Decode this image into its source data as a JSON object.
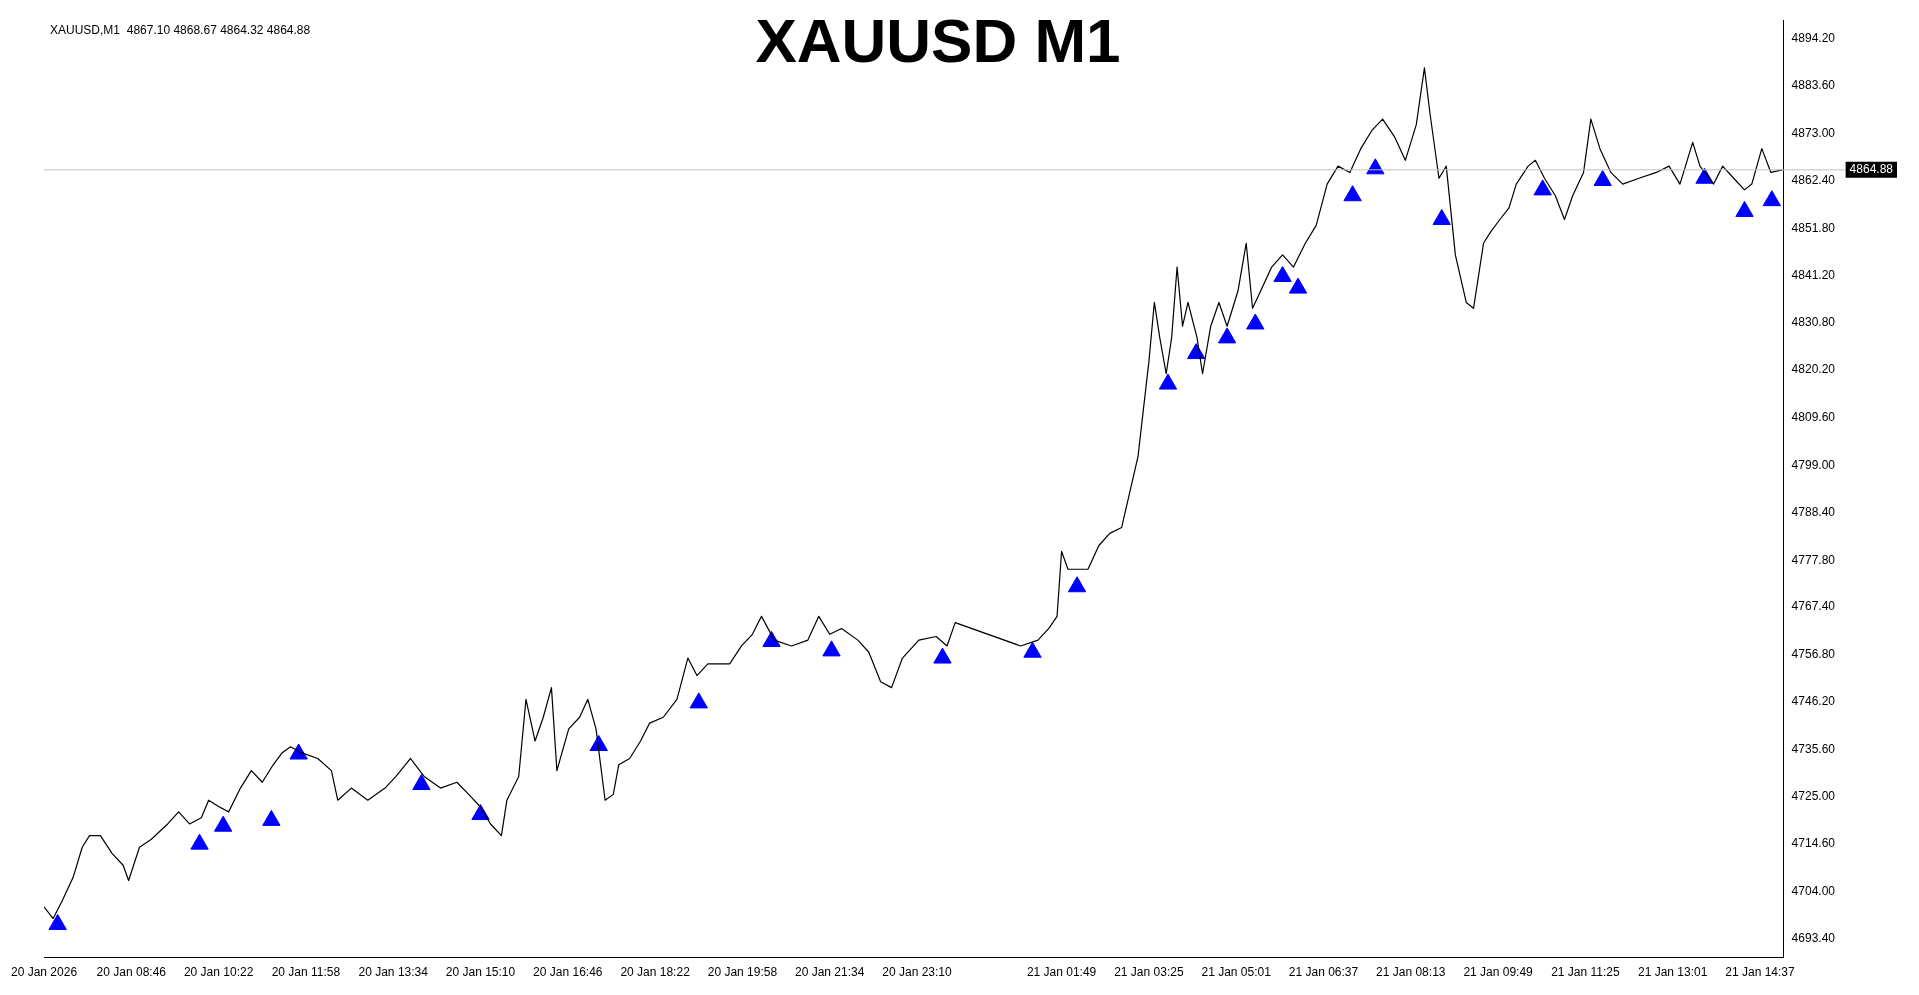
{
  "chart_data": {
    "type": "line",
    "title": "XAUUSD M1",
    "annotations": [
      "XAUUSD,M1  4867.10 4868.67 4864.32 4864.88"
    ],
    "xlim": [
      "2026-01-20T07:10",
      "2026-01-21T15:03"
    ],
    "ylim": [
      4689.2,
      4898.2
    ],
    "xticks": [
      {
        "value": "2026-01-20T07:10",
        "label": "20 Jan 2026"
      },
      {
        "value": "2026-01-20T08:46",
        "label": "20 Jan 08:46"
      },
      {
        "value": "2026-01-20T10:22",
        "label": "20 Jan 10:22"
      },
      {
        "value": "2026-01-20T11:58",
        "label": "20 Jan 11:58"
      },
      {
        "value": "2026-01-20T13:34",
        "label": "20 Jan 13:34"
      },
      {
        "value": "2026-01-20T15:10",
        "label": "20 Jan 15:10"
      },
      {
        "value": "2026-01-20T16:46",
        "label": "20 Jan 16:46"
      },
      {
        "value": "2026-01-20T18:22",
        "label": "20 Jan 18:22"
      },
      {
        "value": "2026-01-20T19:58",
        "label": "20 Jan 19:58"
      },
      {
        "value": "2026-01-20T21:34",
        "label": "20 Jan 21:34"
      },
      {
        "value": "2026-01-20T23:10",
        "label": "20 Jan 23:10"
      },
      {
        "value": "2026-01-21T01:49",
        "label": "21 Jan 01:49"
      },
      {
        "value": "2026-01-21T03:25",
        "label": "21 Jan 03:25"
      },
      {
        "value": "2026-01-21T05:01",
        "label": "21 Jan 05:01"
      },
      {
        "value": "2026-01-21T06:37",
        "label": "21 Jan 06:37"
      },
      {
        "value": "2026-01-21T08:13",
        "label": "21 Jan 08:13"
      },
      {
        "value": "2026-01-21T09:49",
        "label": "21 Jan 09:49"
      },
      {
        "value": "2026-01-21T11:25",
        "label": "21 Jan 11:25"
      },
      {
        "value": "2026-01-21T13:01",
        "label": "21 Jan 13:01"
      },
      {
        "value": "2026-01-21T14:37",
        "label": "21 Jan 14:37"
      }
    ],
    "yticks": [
      {
        "value": 4693.4,
        "label": "4693.40"
      },
      {
        "value": 4704,
        "label": "4704.00"
      },
      {
        "value": 4714.6,
        "label": "4714.60"
      },
      {
        "value": 4725,
        "label": "4725.00"
      },
      {
        "value": 4735.6,
        "label": "4735.60"
      },
      {
        "value": 4746.2,
        "label": "4746.20"
      },
      {
        "value": 4756.8,
        "label": "4756.80"
      },
      {
        "value": 4767.4,
        "label": "4767.40"
      },
      {
        "value": 4777.8,
        "label": "4777.80"
      },
      {
        "value": 4788.4,
        "label": "4788.40"
      },
      {
        "value": 4799,
        "label": "4799.00"
      },
      {
        "value": 4809.6,
        "label": "4809.60"
      },
      {
        "value": 4820.2,
        "label": "4820.20"
      },
      {
        "value": 4830.8,
        "label": "4830.80"
      },
      {
        "value": 4841.2,
        "label": "4841.20"
      },
      {
        "value": 4851.8,
        "label": "4851.80"
      },
      {
        "value": 4862.4,
        "label": "4862.40"
      },
      {
        "value": 4873,
        "label": "4873.00"
      },
      {
        "value": 4883.6,
        "label": "4883.60"
      },
      {
        "value": 4894.2,
        "label": "4894.20"
      }
    ],
    "grid": false,
    "legend": false,
    "ref_lines": [
      {
        "axis": "y",
        "value": 4864.88,
        "label": "4864.88",
        "color": "#c0c0c0"
      }
    ],
    "series": [
      {
        "type": "line",
        "color": "#000000",
        "x": [
          "2026-01-20T07:10",
          "2026-01-20T07:20",
          "2026-01-20T07:30",
          "2026-01-20T07:42",
          "2026-01-20T07:52",
          "2026-01-20T08:00",
          "2026-01-20T08:12",
          "2026-01-20T08:25",
          "2026-01-20T08:37",
          "2026-01-20T08:43",
          "2026-01-20T08:55",
          "2026-01-20T09:08",
          "2026-01-20T09:26",
          "2026-01-20T09:38",
          "2026-01-20T09:50",
          "2026-01-20T10:03",
          "2026-01-20T10:11",
          "2026-01-20T10:21",
          "2026-01-20T10:33",
          "2026-01-20T10:46",
          "2026-01-20T10:58",
          "2026-01-20T11:10",
          "2026-01-20T11:22",
          "2026-01-20T11:32",
          "2026-01-20T11:41",
          "2026-01-20T11:53",
          "2026-01-20T12:11",
          "2026-01-20T12:26",
          "2026-01-20T12:33",
          "2026-01-20T12:48",
          "2026-01-20T13:06",
          "2026-01-20T13:25",
          "2026-01-20T13:37",
          "2026-01-20T13:53",
          "2026-01-20T14:08",
          "2026-01-20T14:26",
          "2026-01-20T14:44",
          "2026-01-20T14:57",
          "2026-01-20T15:09",
          "2026-01-20T15:21",
          "2026-01-20T15:33",
          "2026-01-20T15:39",
          "2026-01-20T15:52",
          "2026-01-20T16:00",
          "2026-01-20T16:10",
          "2026-01-20T16:19",
          "2026-01-20T16:28",
          "2026-01-20T16:34",
          "2026-01-20T16:47",
          "2026-01-20T16:59",
          "2026-01-20T17:08",
          "2026-01-20T17:17",
          "2026-01-20T17:27",
          "2026-01-20T17:36",
          "2026-01-20T17:42",
          "2026-01-20T17:54",
          "2026-01-20T18:06",
          "2026-01-20T18:16",
          "2026-01-20T18:31",
          "2026-01-20T18:46",
          "2026-01-20T18:58",
          "2026-01-20T19:08",
          "2026-01-20T19:20",
          "2026-01-20T19:44",
          "2026-01-20T19:57",
          "2026-01-20T20:09",
          "2026-01-20T20:19",
          "2026-01-20T20:33",
          "2026-01-20T20:52",
          "2026-01-20T21:10",
          "2026-01-20T21:22",
          "2026-01-20T21:34",
          "2026-01-20T21:47",
          "2026-01-20T22:05",
          "2026-01-20T22:17",
          "2026-01-20T22:30",
          "2026-01-20T22:42",
          "2026-01-20T22:54",
          "2026-01-20T23:12",
          "2026-01-20T23:31",
          "2026-01-20T23:43",
          "2026-01-20T23:52",
          "2026-01-21T01:04",
          "2026-01-21T01:23",
          "2026-01-21T01:35",
          "2026-01-21T01:44",
          "2026-01-21T01:49",
          "2026-01-21T01:56",
          "2026-01-21T02:18",
          "2026-01-21T02:30",
          "2026-01-21T02:42",
          "2026-01-21T02:55",
          "2026-01-21T03:04",
          "2026-01-21T03:13",
          "2026-01-21T03:19",
          "2026-01-21T03:25",
          "2026-01-21T03:31",
          "2026-01-21T03:37",
          "2026-01-21T03:44",
          "2026-01-21T03:50",
          "2026-01-21T03:56",
          "2026-01-21T04:02",
          "2026-01-21T04:08",
          "2026-01-21T04:18",
          "2026-01-21T04:24",
          "2026-01-21T04:33",
          "2026-01-21T04:42",
          "2026-01-21T04:51",
          "2026-01-21T05:03",
          "2026-01-21T05:12",
          "2026-01-21T05:19",
          "2026-01-21T05:28",
          "2026-01-21T05:40",
          "2026-01-21T05:52",
          "2026-01-21T06:04",
          "2026-01-21T06:17",
          "2026-01-21T06:29",
          "2026-01-21T06:41",
          "2026-01-21T06:53",
          "2026-01-21T07:06",
          "2026-01-21T07:18",
          "2026-01-21T07:30",
          "2026-01-21T07:42",
          "2026-01-21T07:55",
          "2026-01-21T08:07",
          "2026-01-21T08:19",
          "2026-01-21T08:28",
          "2026-01-21T08:34",
          "2026-01-21T08:44",
          "2026-01-21T08:52",
          "2026-01-21T09:02",
          "2026-01-21T09:14",
          "2026-01-21T09:22",
          "2026-01-21T09:33",
          "2026-01-21T09:41",
          "2026-01-21T09:51",
          "2026-01-21T10:01",
          "2026-01-21T10:09",
          "2026-01-21T10:22",
          "2026-01-21T10:30",
          "2026-01-21T10:40",
          "2026-01-21T10:52",
          "2026-01-21T11:02",
          "2026-01-21T11:11",
          "2026-01-21T11:23",
          "2026-01-21T11:31",
          "2026-01-21T11:41",
          "2026-01-21T11:53",
          "2026-01-21T12:06",
          "2026-01-21T12:24",
          "2026-01-21T12:43",
          "2026-01-21T12:57",
          "2026-01-21T13:09",
          "2026-01-21T13:23",
          "2026-01-21T13:31",
          "2026-01-21T13:46",
          "2026-01-21T13:56",
          "2026-01-21T14:08",
          "2026-01-21T14:20",
          "2026-01-21T14:28",
          "2026-01-21T14:39",
          "2026-01-21T14:49",
          "2026-01-21T15:02"
        ],
        "values": [
          4700.5,
          4697.9,
          4701.9,
          4707.1,
          4713.8,
          4716.4,
          4716.4,
          4712.4,
          4709.8,
          4706.4,
          4713.8,
          4715.6,
          4719.0,
          4721.7,
          4719.0,
          4720.4,
          4724.3,
          4723.0,
          4721.7,
          4727.0,
          4730.9,
          4728.3,
          4732.2,
          4734.9,
          4736.2,
          4734.9,
          4733.6,
          4730.9,
          4724.3,
          4727.0,
          4724.3,
          4727.0,
          4729.6,
          4733.6,
          4729.6,
          4727.0,
          4728.3,
          4725.6,
          4723.0,
          4719.0,
          4716.4,
          4724.3,
          4729.6,
          4746.8,
          4737.5,
          4742.8,
          4749.4,
          4730.9,
          4740.2,
          4742.8,
          4746.8,
          4740.2,
          4724.3,
          4725.6,
          4732.2,
          4733.6,
          4737.5,
          4741.5,
          4742.8,
          4746.8,
          4756.0,
          4752.1,
          4754.7,
          4754.7,
          4758.7,
          4761.3,
          4765.3,
          4760.0,
          4758.7,
          4760.0,
          4765.3,
          4761.3,
          4762.6,
          4760.0,
          4757.3,
          4750.7,
          4749.4,
          4756.0,
          4760.0,
          4760.8,
          4758.7,
          4763.9,
          4758.7,
          4760.0,
          4762.6,
          4765.3,
          4779.8,
          4775.8,
          4775.8,
          4781.1,
          4783.8,
          4785.1,
          4793.0,
          4800.9,
          4811.5,
          4822.1,
          4835.3,
          4827.4,
          4819.4,
          4827.4,
          4843.2,
          4830.0,
          4835.3,
          4827.4,
          4819.4,
          4830.0,
          4835.3,
          4830.0,
          4837.9,
          4848.5,
          4834.0,
          4837.9,
          4843.2,
          4845.9,
          4843.2,
          4848.5,
          4852.5,
          4861.7,
          4865.7,
          4864.3,
          4869.6,
          4873.6,
          4876.2,
          4872.3,
          4867.0,
          4874.9,
          4887.6,
          4877.6,
          4863.0,
          4865.7,
          4845.9,
          4835.3,
          4834.0,
          4848.5,
          4851.1,
          4853.8,
          4856.4,
          4861.7,
          4865.7,
          4867.0,
          4863.0,
          4859.1,
          4853.8,
          4859.1,
          4864.3,
          4876.2,
          4869.6,
          4864.3,
          4861.7,
          4863.0,
          4864.3,
          4865.7,
          4861.7,
          4871.0,
          4865.7,
          4861.7,
          4865.7,
          4863.0,
          4860.4,
          4861.7,
          4869.6,
          4864.3,
          4864.9
        ]
      },
      {
        "type": "scatter",
        "color": "#0000ff",
        "marker": "triangle",
        "x": [
          "2026-01-20T07:25",
          "2026-01-20T10:01",
          "2026-01-20T10:27",
          "2026-01-20T11:20",
          "2026-01-20T11:50",
          "2026-01-20T14:05",
          "2026-01-20T15:10",
          "2026-01-20T17:20",
          "2026-01-20T19:10",
          "2026-01-20T20:30",
          "2026-01-20T21:36",
          "2026-01-20T23:38",
          "2026-01-21T01:17",
          "2026-01-21T02:06",
          "2026-01-21T03:46",
          "2026-01-21T04:17",
          "2026-01-21T04:51",
          "2026-01-21T05:22",
          "2026-01-21T05:52",
          "2026-01-21T06:09",
          "2026-01-21T07:09",
          "2026-01-21T07:34",
          "2026-01-21T08:47",
          "2026-01-21T10:38",
          "2026-01-21T11:44",
          "2026-01-21T13:36",
          "2026-01-21T14:20",
          "2026-01-21T14:50"
        ],
        "values": [
          4696.6,
          4714.5,
          4718.5,
          4719.8,
          4734.6,
          4727.8,
          4721.1,
          4736.5,
          4746.0,
          4759.7,
          4757.6,
          4756.0,
          4757.3,
          4771.9,
          4817.1,
          4823.9,
          4827.4,
          4830.5,
          4841.1,
          4838.5,
          4859.1,
          4865.1,
          4853.8,
          4860.4,
          4862.5,
          4863.0,
          4855.6,
          4858.0
        ]
      }
    ]
  }
}
